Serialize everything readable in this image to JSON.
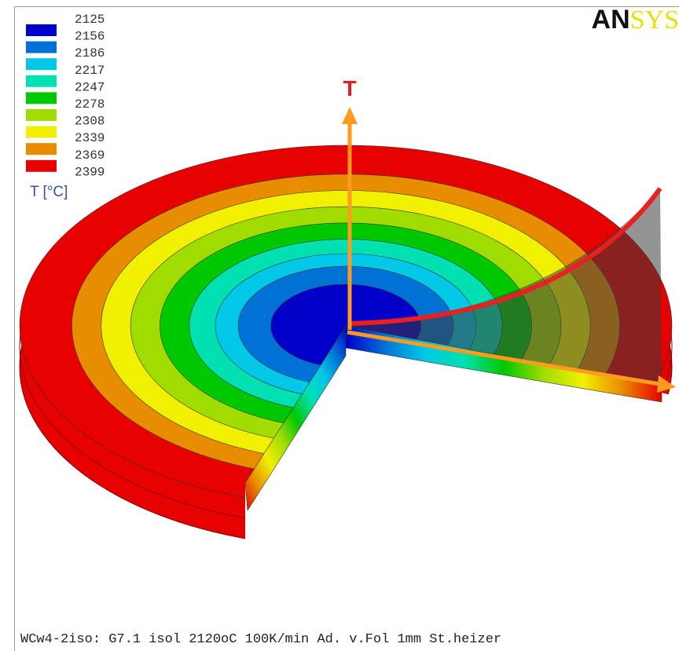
{
  "logo": {
    "dark": "AN",
    "light": "SYS"
  },
  "legend": {
    "levels": [
      "2125",
      "2156",
      "2186",
      "2217",
      "2247",
      "2278",
      "2308",
      "2339",
      "2369",
      "2399"
    ],
    "colors": [
      "#0000c8",
      "#0072d6",
      "#00c8e6",
      "#00e0b0",
      "#00c800",
      "#a0dc00",
      "#f0f000",
      "#e88c00",
      "#e60000"
    ],
    "title": "T [°C]"
  },
  "axis_label": "T",
  "footer": "WCw4-2iso: G7.1 isol 2120oC 100K/min Ad. v.Fol 1mm St.heizer"
}
